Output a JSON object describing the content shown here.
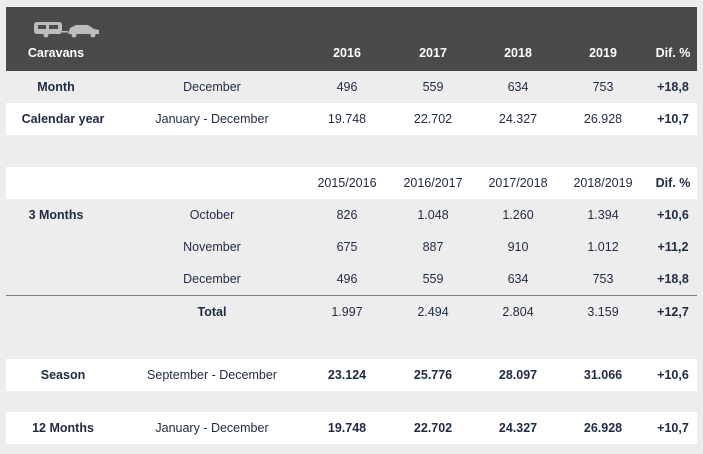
{
  "header": {
    "title": "Caravans",
    "y1": "2016",
    "y2": "2017",
    "y3": "2018",
    "y4": "2019",
    "dif": "Dif. %"
  },
  "month": {
    "label": "Month",
    "period": "December",
    "v1": "496",
    "v2": "559",
    "v3": "634",
    "v4": "753",
    "dif": "+18,8"
  },
  "calendar_year": {
    "label": "Calendar year",
    "period": "January - December",
    "v1": "19.748",
    "v2": "22.702",
    "v3": "24.327",
    "v4": "26.928",
    "dif": "+10,7"
  },
  "season_header": {
    "y1": "2015/2016",
    "y2": "2016/2017",
    "y3": "2017/2018",
    "y4": "2018/2019",
    "dif": "Dif. %"
  },
  "three_months": {
    "label": "3 Months",
    "rows": [
      {
        "period": "October",
        "v1": "826",
        "v2": "1.048",
        "v3": "1.260",
        "v4": "1.394",
        "dif": "+10,6"
      },
      {
        "period": "November",
        "v1": "675",
        "v2": "887",
        "v3": "910",
        "v4": "1.012",
        "dif": "+11,2"
      },
      {
        "period": "December",
        "v1": "496",
        "v2": "559",
        "v3": "634",
        "v4": "753",
        "dif": "+18,8"
      }
    ],
    "total": {
      "label": "Total",
      "v1": "1.997",
      "v2": "2.494",
      "v3": "2.804",
      "v4": "3.159",
      "dif": "+12,7"
    }
  },
  "season": {
    "label": "Season",
    "period": "September - December",
    "v1": "23.124",
    "v2": "25.776",
    "v3": "28.097",
    "v4": "31.066",
    "dif": "+10,6"
  },
  "twelve_months": {
    "label": "12 Months",
    "period": "January - December",
    "v1": "19.748",
    "v2": "22.702",
    "v3": "24.327",
    "v4": "26.928",
    "dif": "+10,7"
  },
  "icons": {
    "header_icon": "caravan-and-car-icon"
  },
  "colors": {
    "header_bg": "#4a4a4a",
    "page_bg": "#ededed",
    "row_bg": "#ffffff",
    "text": "#1f2a44"
  }
}
